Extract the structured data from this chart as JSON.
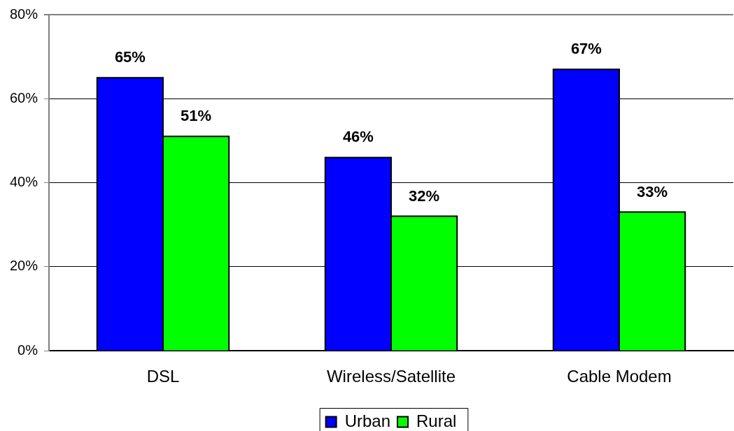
{
  "chart_data": {
    "type": "bar",
    "categories": [
      "DSL",
      "Wireless/Satellite",
      "Cable Modem"
    ],
    "series": [
      {
        "name": "Urban",
        "color": "#0000ff",
        "values": [
          65,
          46,
          67
        ],
        "value_labels": [
          "65%",
          "46%",
          "67%"
        ]
      },
      {
        "name": "Rural",
        "color": "#00ff00",
        "values": [
          51,
          32,
          33
        ],
        "value_labels": [
          "51%",
          "32%",
          "33%"
        ]
      }
    ],
    "ylim": [
      0,
      80
    ],
    "yticks": [
      {
        "value": 0,
        "label": "0%"
      },
      {
        "value": 20,
        "label": "20%"
      },
      {
        "value": 40,
        "label": "40%"
      },
      {
        "value": 60,
        "label": "60%"
      },
      {
        "value": 80,
        "label": "80%"
      }
    ],
    "grid": "y",
    "legend": "bottom"
  }
}
